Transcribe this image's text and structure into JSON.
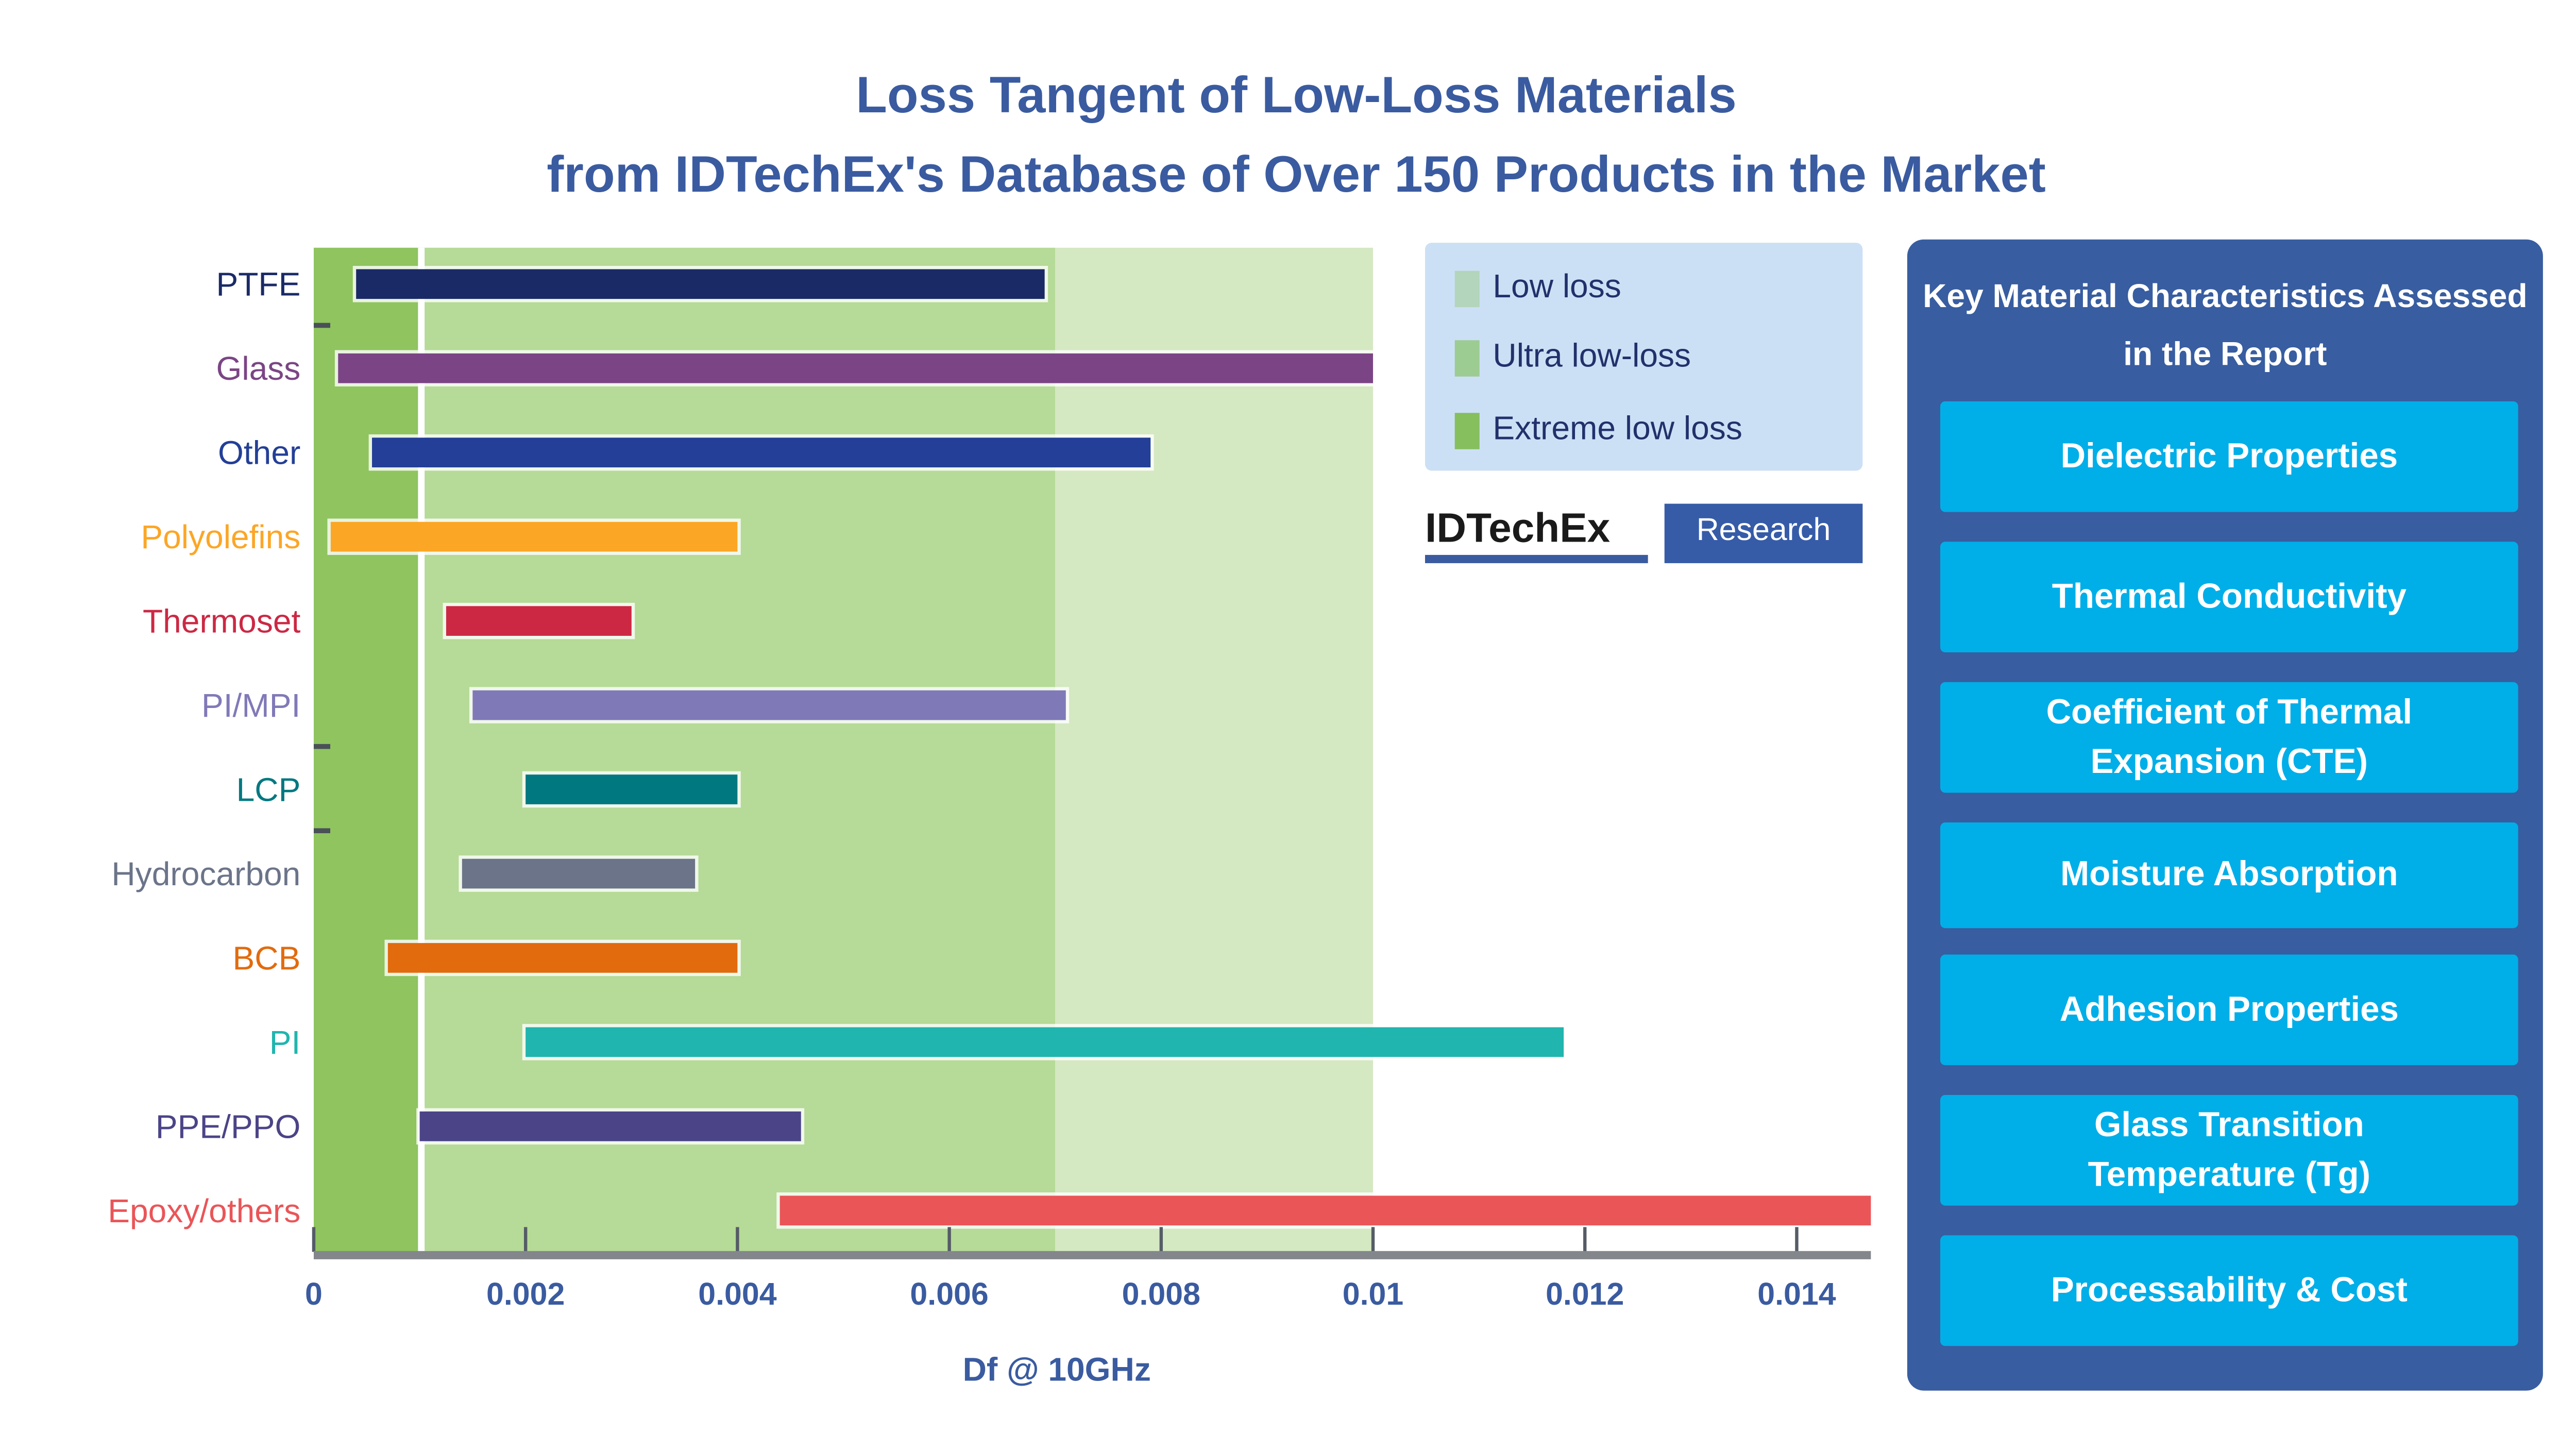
{
  "chart_data": {
    "type": "bar",
    "orientation": "horizontal-range",
    "title": "Loss Tangent of Low-Loss Materials",
    "subtitle": "from IDTechEx's Database of Over 150 Products in the Market",
    "xlabel": "Df @ 10GHz",
    "ylabel": "",
    "xlim": [
      0,
      0.0147
    ],
    "xticks": [
      0,
      0.002,
      0.004,
      0.006,
      0.008,
      0.01,
      0.012,
      0.014
    ],
    "xtick_labels": [
      "0",
      "0.002",
      "0.004",
      "0.006",
      "0.008",
      "0.01",
      "0.012",
      "0.014"
    ],
    "grid": false,
    "bands": [
      {
        "name": "Extreme low loss",
        "from": 0,
        "to": 0.001,
        "color": "#8fc45f"
      },
      {
        "name": "Ultra low-loss",
        "from": 0.001,
        "to": 0.007,
        "color": "#b6da97"
      },
      {
        "name": "Low loss",
        "from": 0.007,
        "to": 0.01,
        "color": "#d4e8c2"
      }
    ],
    "legend": {
      "placement": "top-right",
      "entries": [
        {
          "label": "Low loss",
          "color": "#b2d5bb"
        },
        {
          "label": "Ultra low-loss",
          "color": "#9dcc93"
        },
        {
          "label": "Extreme low loss",
          "color": "#86bf5e"
        }
      ]
    },
    "categories": [
      "PTFE",
      "Glass",
      "Other",
      "Polyolefins",
      "Thermoset",
      "PI/MPI",
      "LCP",
      "Hydrocarbon",
      "BCB",
      "PI",
      "PPE/PPO",
      "Epoxy/others"
    ],
    "ranges": [
      [
        0.0004,
        0.0069
      ],
      [
        0.00023,
        0.01
      ],
      [
        0.00055,
        0.0079
      ],
      [
        0.00016,
        0.004
      ],
      [
        0.00125,
        0.003
      ],
      [
        0.0015,
        0.0071
      ],
      [
        0.002,
        0.004
      ],
      [
        0.0014,
        0.0036
      ],
      [
        0.0007,
        0.004
      ],
      [
        0.002,
        0.0118
      ],
      [
        0.001,
        0.0046
      ],
      [
        0.0044,
        0.0147
      ]
    ],
    "colors": [
      "#1a2a66",
      "#7b4585",
      "#233f97",
      "#fca626",
      "#cc2844",
      "#8079b8",
      "#007880",
      "#6b7489",
      "#e26b0e",
      "#20b5ae",
      "#4b4487",
      "#ea5558"
    ]
  },
  "logo": {
    "main": "IDTechEx",
    "sub": "Research"
  },
  "panel": {
    "title": "Key Material Characteristics Assessed in the Report",
    "items": [
      "Dielectric Properties",
      "Thermal Conductivity",
      "Coefficient of Thermal Expansion (CTE)",
      "Moisture Absorption",
      "Adhesion Properties",
      "Glass Transition Temperature (Tg)",
      "Processability & Cost"
    ]
  }
}
